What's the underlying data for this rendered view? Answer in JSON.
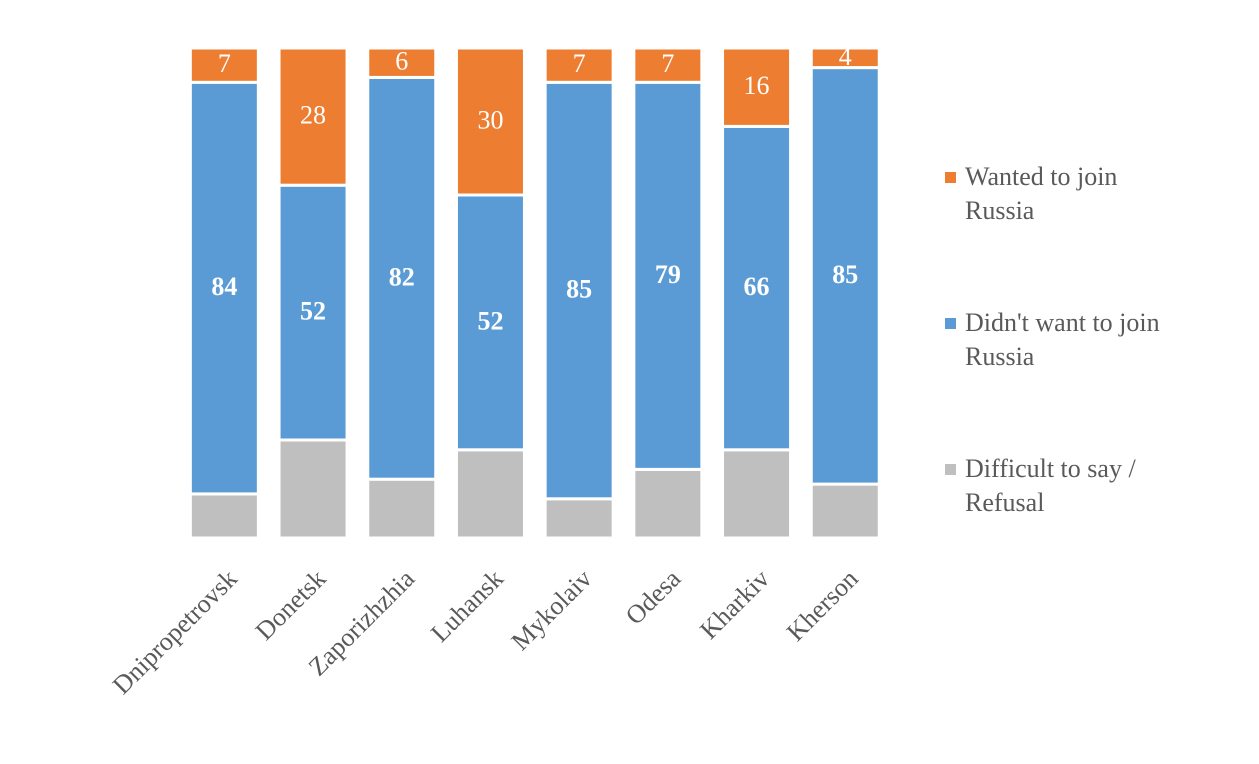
{
  "chart_data": {
    "type": "stacked-bar",
    "categories": [
      "Dnipropetrovsk",
      "Donetsk",
      "Zaporizhzhia",
      "Luhansk",
      "Mykolaiv",
      "Odesa",
      "Kharkiv",
      "Kherson"
    ],
    "ylim": [
      0,
      100
    ],
    "series": [
      {
        "name": "Difficult to say / Refusal",
        "color": "#bfbfbf",
        "values": [
          9,
          20,
          12,
          18,
          8,
          14,
          18,
          11
        ]
      },
      {
        "name": "Didn't want to join Russia",
        "color": "#5b9bd5",
        "values": [
          84,
          52,
          82,
          52,
          85,
          79,
          66,
          85
        ]
      },
      {
        "name": "Wanted to join Russia",
        "color": "#ed7d31",
        "values": [
          7,
          28,
          6,
          30,
          7,
          7,
          16,
          4
        ]
      }
    ]
  }
}
